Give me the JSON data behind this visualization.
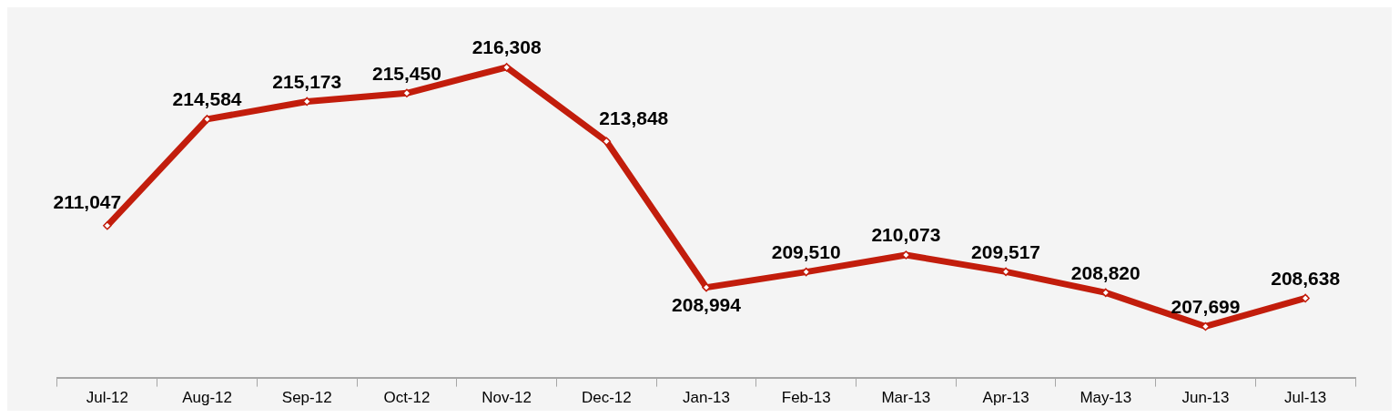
{
  "chart_data": {
    "type": "line",
    "categories": [
      "Jul-12",
      "Aug-12",
      "Sep-12",
      "Oct-12",
      "Nov-12",
      "Dec-12",
      "Jan-13",
      "Feb-13",
      "Mar-13",
      "Apr-13",
      "May-13",
      "Jun-13",
      "Jul-13"
    ],
    "series": [
      {
        "color": "#c21d0c",
        "values": [
          211047,
          214584,
          215173,
          215450,
          216308,
          213848,
          208994,
          209510,
          210073,
          209517,
          208820,
          207699,
          208638
        ],
        "value_labels": [
          "211,047",
          "214,584",
          "215,173",
          "215,450",
          "216,308",
          "213,848",
          "208,994",
          "209,510",
          "210,073",
          "209,517",
          "208,820",
          "207,699",
          "208,638"
        ]
      }
    ],
    "marker": "diamond",
    "grid": false,
    "legend": false,
    "tick_labels": "x"
  }
}
